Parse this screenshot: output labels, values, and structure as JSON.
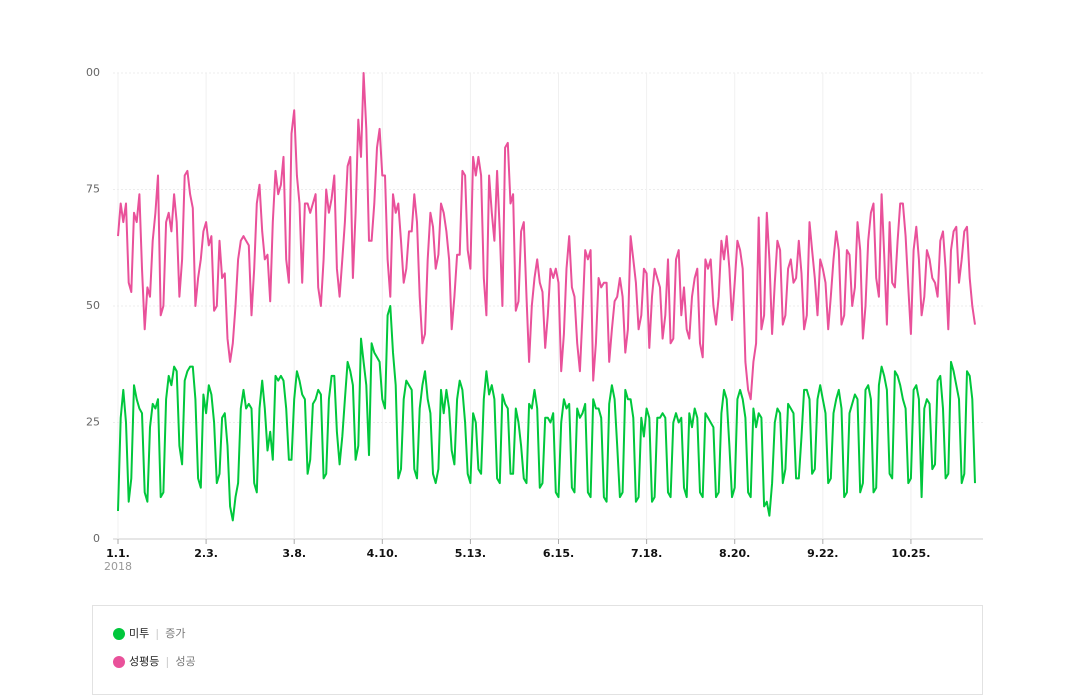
{
  "chart_data": {
    "type": "line",
    "x_subtitle": "2018",
    "xlim": [
      0,
      321
    ],
    "xticks": [
      {
        "value": 0,
        "label": "1.1."
      },
      {
        "value": 33,
        "label": "2.3."
      },
      {
        "value": 66,
        "label": "3.8."
      },
      {
        "value": 99,
        "label": "4.10."
      },
      {
        "value": 132,
        "label": "5.13."
      },
      {
        "value": 165,
        "label": "6.15."
      },
      {
        "value": 198,
        "label": "7.18."
      },
      {
        "value": 231,
        "label": "8.20."
      },
      {
        "value": 264,
        "label": "9.22."
      },
      {
        "value": 297,
        "label": "10.25."
      }
    ],
    "ylim": [
      0,
      100
    ],
    "yticks": [
      0,
      25,
      50,
      75,
      {
        "value": 100,
        "label": "00"
      }
    ],
    "grid": true,
    "series": [
      {
        "name": "미투",
        "note": "증가",
        "color": "#00c73c",
        "values": [
          6,
          26,
          32,
          25,
          8,
          13,
          33,
          30,
          28,
          27,
          10,
          8,
          24,
          29,
          28,
          30,
          9,
          10,
          30,
          35,
          33,
          37,
          36,
          20,
          16,
          34,
          36,
          37,
          37,
          30,
          13,
          11,
          31,
          27,
          33,
          31,
          25,
          12,
          14,
          26,
          27,
          20,
          7,
          4,
          9,
          12,
          28,
          32,
          28,
          29,
          28,
          12,
          10,
          28,
          34,
          28,
          19,
          23,
          17,
          35,
          34,
          35,
          34,
          28,
          17,
          17,
          30,
          36,
          34,
          31,
          30,
          14,
          17,
          29,
          30,
          32,
          31,
          13,
          14,
          30,
          35,
          35,
          23,
          16,
          22,
          30,
          38,
          36,
          33,
          17,
          20,
          43,
          38,
          33,
          18,
          42,
          40,
          39,
          38,
          30,
          28,
          48,
          50,
          40,
          33,
          13,
          15,
          30,
          34,
          33,
          32,
          15,
          13,
          28,
          33,
          36,
          30,
          27,
          14,
          12,
          15,
          32,
          27,
          32,
          28,
          19,
          16,
          30,
          34,
          32,
          25,
          14,
          12,
          27,
          25,
          15,
          14,
          30,
          36,
          31,
          33,
          30,
          13,
          12,
          31,
          29,
          28,
          14,
          14,
          28,
          25,
          20,
          13,
          12,
          29,
          28,
          32,
          28,
          11,
          12,
          26,
          26,
          25,
          27,
          10,
          9,
          25,
          30,
          28,
          29,
          11,
          10,
          28,
          26,
          27,
          29,
          10,
          9,
          30,
          28,
          28,
          26,
          9,
          8,
          29,
          33,
          30,
          20,
          9,
          10,
          32,
          30,
          30,
          26,
          8,
          9,
          26,
          22,
          28,
          26,
          8,
          9,
          26,
          26,
          27,
          26,
          10,
          9,
          25,
          27,
          25,
          26,
          11,
          9,
          27,
          24,
          28,
          26,
          10,
          9,
          27,
          26,
          25,
          24,
          9,
          10,
          27,
          32,
          30,
          20,
          9,
          11,
          30,
          32,
          30,
          26,
          10,
          9,
          28,
          24,
          27,
          26,
          7,
          8,
          5,
          12,
          25,
          28,
          27,
          12,
          15,
          29,
          28,
          27,
          13,
          13,
          22,
          32,
          32,
          30,
          14,
          15,
          30,
          33,
          30,
          27,
          12,
          13,
          27,
          30,
          32,
          28,
          9,
          10,
          27,
          29,
          31,
          30,
          10,
          12,
          32,
          33,
          30,
          10,
          11,
          33,
          37,
          35,
          32,
          14,
          13,
          36,
          35,
          33,
          30,
          28,
          12,
          13,
          32,
          33,
          30,
          9,
          28,
          30,
          29,
          15,
          16,
          34,
          35,
          28,
          13,
          14,
          38,
          36,
          33,
          30,
          12,
          14,
          36,
          35,
          30,
          12
        ]
      },
      {
        "name": "성평등",
        "note": "성공",
        "color": "#e9519a",
        "values": [
          65,
          72,
          68,
          72,
          55,
          53,
          70,
          68,
          74,
          58,
          45,
          54,
          52,
          64,
          70,
          78,
          48,
          50,
          68,
          70,
          66,
          74,
          68,
          52,
          60,
          78,
          79,
          74,
          71,
          50,
          56,
          60,
          66,
          68,
          63,
          65,
          49,
          50,
          64,
          56,
          57,
          43,
          38,
          42,
          50,
          60,
          64,
          65,
          64,
          63,
          48,
          58,
          72,
          76,
          66,
          60,
          61,
          51,
          68,
          79,
          74,
          76,
          82,
          60,
          55,
          87,
          92,
          78,
          72,
          55,
          72,
          72,
          70,
          72,
          74,
          54,
          50,
          60,
          75,
          70,
          73,
          78,
          58,
          52,
          60,
          68,
          80,
          82,
          56,
          70,
          90,
          82,
          100,
          88,
          64,
          64,
          72,
          84,
          88,
          78,
          78,
          60,
          52,
          74,
          70,
          72,
          64,
          55,
          58,
          66,
          66,
          74,
          68,
          52,
          42,
          44,
          60,
          70,
          67,
          58,
          61,
          72,
          70,
          66,
          60,
          45,
          52,
          61,
          61,
          79,
          78,
          62,
          58,
          82,
          78,
          82,
          78,
          56,
          48,
          78,
          70,
          64,
          79,
          66,
          50,
          84,
          85,
          72,
          74,
          49,
          51,
          66,
          68,
          52,
          38,
          50,
          56,
          60,
          55,
          53,
          41,
          48,
          58,
          56,
          58,
          55,
          36,
          44,
          58,
          65,
          54,
          52,
          42,
          36,
          48,
          62,
          60,
          62,
          34,
          42,
          56,
          54,
          55,
          55,
          38,
          45,
          51,
          52,
          56,
          52,
          40,
          45,
          65,
          60,
          55,
          45,
          48,
          58,
          57,
          41,
          52,
          58,
          56,
          54,
          43,
          48,
          60,
          42,
          43,
          60,
          62,
          48,
          54,
          45,
          43,
          52,
          56,
          58,
          42,
          39,
          60,
          58,
          60,
          50,
          46,
          52,
          64,
          60,
          65,
          58,
          47,
          55,
          64,
          62,
          58,
          38,
          32,
          30,
          38,
          42,
          69,
          45,
          48,
          70,
          60,
          44,
          55,
          64,
          62,
          46,
          48,
          58,
          60,
          55,
          56,
          64,
          57,
          45,
          48,
          68,
          62,
          56,
          48,
          60,
          58,
          55,
          45,
          52,
          60,
          66,
          62,
          46,
          48,
          62,
          61,
          50,
          54,
          68,
          62,
          43,
          50,
          64,
          70,
          72,
          56,
          52,
          74,
          61,
          46,
          68,
          55,
          54,
          64,
          72,
          72,
          65,
          54,
          44,
          62,
          67,
          60,
          48,
          52,
          62,
          60,
          56,
          55,
          52,
          64,
          66,
          58,
          45,
          62,
          66,
          67,
          55,
          60,
          66,
          67,
          56,
          50,
          46
        ]
      }
    ]
  }
}
